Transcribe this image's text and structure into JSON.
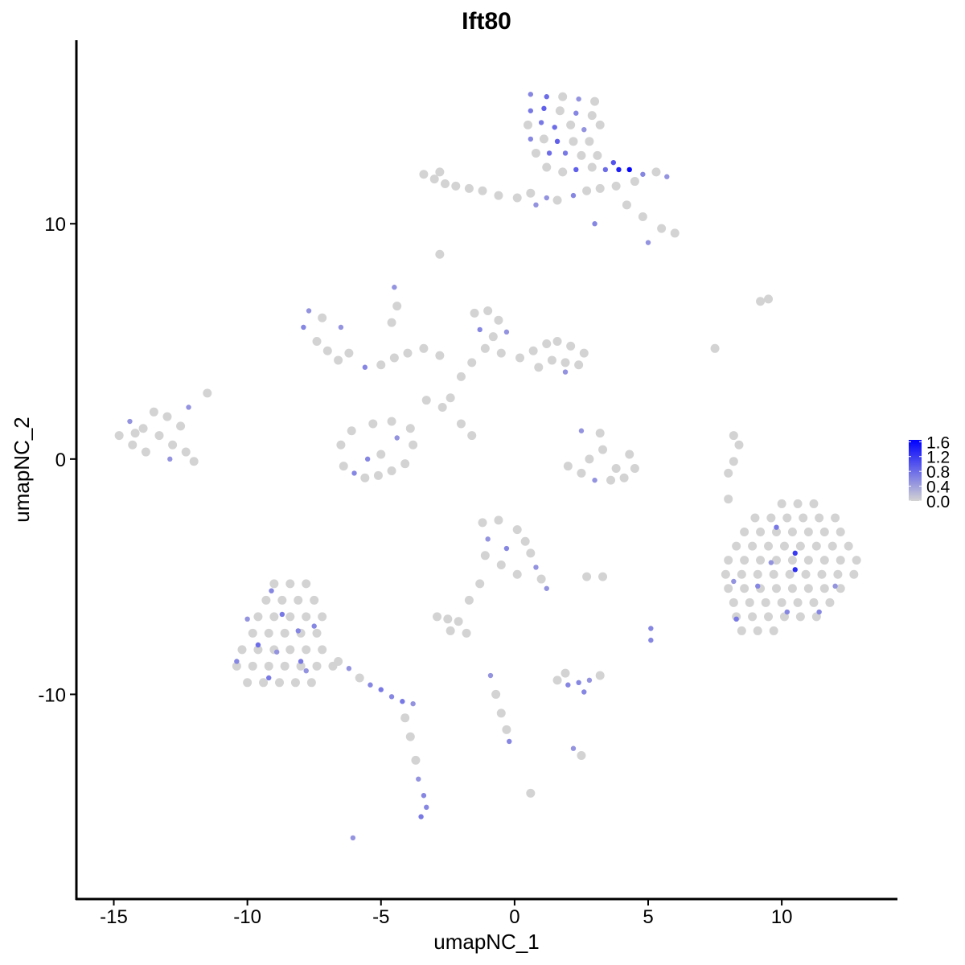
{
  "chart_data": {
    "type": "scatter",
    "title": "Ift80",
    "xlabel": "umapNC_1",
    "ylabel": "umapNC_2",
    "xlim": [
      -16.4,
      14.3
    ],
    "ylim": [
      -18.7,
      17.8
    ],
    "xticks": [
      -15,
      -10,
      -5,
      0,
      5,
      10
    ],
    "xtick_labels": [
      "-15",
      "-10",
      "-5",
      "0",
      "5",
      "10"
    ],
    "yticks": [
      -10,
      0,
      10
    ],
    "ytick_labels": [
      "-10",
      "0",
      "10"
    ],
    "grid": false,
    "legend": {
      "position": "right",
      "type": "colorbar",
      "ticks": [
        0.0,
        0.4,
        0.8,
        1.2,
        1.6
      ],
      "tick_labels": [
        "0.0",
        "0.4",
        "0.8",
        "1.2",
        "1.6"
      ],
      "range": [
        0,
        1.65
      ],
      "low_color": "#d3d3d3",
      "high_color": "#0000ff"
    },
    "point_fields": [
      "umapNC_1",
      "umapNC_2",
      "expression"
    ],
    "points": [
      [
        0.6,
        15.5,
        0.6
      ],
      [
        1.2,
        15.4,
        0.8
      ],
      [
        1.8,
        15.4,
        0
      ],
      [
        2.4,
        15.3,
        0.5
      ],
      [
        3.0,
        15.2,
        0
      ],
      [
        0.6,
        14.8,
        0.7
      ],
      [
        1.1,
        14.9,
        0.9
      ],
      [
        1.7,
        14.8,
        0
      ],
      [
        2.3,
        14.7,
        0.6
      ],
      [
        2.9,
        14.6,
        0
      ],
      [
        3.2,
        14.2,
        0
      ],
      [
        0.5,
        14.2,
        0
      ],
      [
        1.0,
        14.3,
        0.7
      ],
      [
        1.5,
        14.1,
        0.8
      ],
      [
        2.1,
        14.2,
        0
      ],
      [
        2.6,
        14.0,
        0.5
      ],
      [
        0.6,
        13.6,
        0.6
      ],
      [
        1.1,
        13.6,
        0
      ],
      [
        1.6,
        13.5,
        0.9
      ],
      [
        2.2,
        13.5,
        0
      ],
      [
        2.8,
        13.5,
        0
      ],
      [
        0.8,
        13.0,
        0
      ],
      [
        1.3,
        13.0,
        0.8
      ],
      [
        1.9,
        13.0,
        0.7
      ],
      [
        2.5,
        12.9,
        0
      ],
      [
        3.1,
        12.9,
        0
      ],
      [
        1.2,
        12.4,
        0
      ],
      [
        1.8,
        12.2,
        0
      ],
      [
        2.3,
        12.3,
        0.9
      ],
      [
        2.9,
        12.4,
        0
      ],
      [
        3.4,
        12.3,
        0.8
      ],
      [
        3.9,
        12.3,
        1.4
      ],
      [
        4.3,
        12.3,
        1.6
      ],
      [
        3.7,
        12.6,
        1.0
      ],
      [
        4.8,
        12.1,
        0.6
      ],
      [
        5.3,
        12.2,
        0
      ],
      [
        5.7,
        12.0,
        0.5
      ],
      [
        4.5,
        11.8,
        0
      ],
      [
        3.8,
        11.6,
        0
      ],
      [
        3.2,
        11.5,
        0
      ],
      [
        2.7,
        11.4,
        0
      ],
      [
        2.2,
        11.2,
        0.6
      ],
      [
        1.6,
        11.0,
        0
      ],
      [
        1.2,
        11.1,
        0.5
      ],
      [
        4.2,
        10.8,
        0
      ],
      [
        4.8,
        10.3,
        0
      ],
      [
        5.5,
        9.8,
        0
      ],
      [
        6.0,
        9.6,
        0
      ],
      [
        5.0,
        9.2,
        0.5
      ],
      [
        3.0,
        10.0,
        0.6
      ],
      [
        -3.4,
        12.1,
        0
      ],
      [
        -3.0,
        11.9,
        0
      ],
      [
        -2.6,
        11.7,
        0
      ],
      [
        -2.8,
        12.2,
        0
      ],
      [
        -2.2,
        11.6,
        0
      ],
      [
        -1.7,
        11.5,
        0
      ],
      [
        -1.2,
        11.4,
        0
      ],
      [
        -0.6,
        11.2,
        0
      ],
      [
        0.1,
        11.1,
        0
      ],
      [
        0.6,
        11.3,
        0
      ],
      [
        0.8,
        10.8,
        0.5
      ],
      [
        -2.8,
        8.7,
        0
      ],
      [
        -14.8,
        1.0,
        0
      ],
      [
        -14.4,
        1.6,
        0.5
      ],
      [
        -14.3,
        0.6,
        0
      ],
      [
        -13.9,
        1.3,
        0
      ],
      [
        -13.8,
        0.3,
        0
      ],
      [
        -13.5,
        2.0,
        0
      ],
      [
        -13.3,
        1.0,
        0
      ],
      [
        -13.0,
        1.8,
        0
      ],
      [
        -12.8,
        0.6,
        0
      ],
      [
        -12.9,
        0.0,
        0.5
      ],
      [
        -12.5,
        1.4,
        0
      ],
      [
        -12.3,
        0.3,
        0
      ],
      [
        -12.0,
        -0.1,
        0
      ],
      [
        -12.2,
        2.2,
        0.5
      ],
      [
        -11.5,
        2.8,
        0
      ],
      [
        -14.2,
        1.1,
        0
      ],
      [
        -6.5,
        0.6,
        0
      ],
      [
        -6.4,
        -0.3,
        0
      ],
      [
        -6.0,
        -0.6,
        0.6
      ],
      [
        -5.6,
        -0.8,
        0
      ],
      [
        -5.1,
        -0.7,
        0
      ],
      [
        -4.6,
        -0.5,
        0
      ],
      [
        -4.1,
        -0.2,
        0
      ],
      [
        -3.8,
        0.6,
        0
      ],
      [
        -3.9,
        1.3,
        0
      ],
      [
        -4.4,
        0.9,
        0.5
      ],
      [
        -5.0,
        0.2,
        0
      ],
      [
        -5.5,
        0.0,
        0.6
      ],
      [
        -6.1,
        1.2,
        0
      ],
      [
        -5.3,
        1.5,
        0
      ],
      [
        -4.6,
        1.6,
        0
      ],
      [
        -7.7,
        6.3,
        0.5
      ],
      [
        -7.9,
        5.6,
        0.6
      ],
      [
        -7.4,
        5.0,
        0
      ],
      [
        -7.0,
        4.6,
        0
      ],
      [
        -6.6,
        4.2,
        0
      ],
      [
        -6.2,
        4.5,
        0
      ],
      [
        -6.5,
        5.6,
        0.5
      ],
      [
        -7.2,
        6.0,
        0
      ],
      [
        -5.6,
        3.9,
        0.6
      ],
      [
        -5.0,
        4.0,
        0
      ],
      [
        -4.5,
        4.3,
        0
      ],
      [
        -4.0,
        4.5,
        0
      ],
      [
        -3.4,
        4.7,
        0
      ],
      [
        -2.8,
        4.4,
        0
      ],
      [
        -4.5,
        7.3,
        0.5
      ],
      [
        -4.4,
        6.5,
        0
      ],
      [
        -4.6,
        5.8,
        0
      ],
      [
        -1.5,
        6.2,
        0
      ],
      [
        -1.0,
        6.3,
        0
      ],
      [
        -0.6,
        5.9,
        0
      ],
      [
        -1.3,
        5.5,
        0.6
      ],
      [
        -0.8,
        5.2,
        0
      ],
      [
        -0.3,
        5.4,
        0.5
      ],
      [
        -1.1,
        4.7,
        0
      ],
      [
        -0.5,
        4.5,
        0
      ],
      [
        0.2,
        4.3,
        0
      ],
      [
        0.7,
        4.6,
        0
      ],
      [
        1.2,
        4.9,
        0
      ],
      [
        1.6,
        5.0,
        0
      ],
      [
        2.1,
        4.8,
        0
      ],
      [
        2.6,
        4.5,
        0
      ],
      [
        2.4,
        4.0,
        0
      ],
      [
        1.9,
        4.1,
        0
      ],
      [
        1.4,
        4.2,
        0
      ],
      [
        0.9,
        3.9,
        0
      ],
      [
        -1.6,
        4.1,
        0
      ],
      [
        -2.0,
        3.5,
        0
      ],
      [
        -2.4,
        2.6,
        0
      ],
      [
        -2.7,
        2.2,
        0
      ],
      [
        -3.3,
        2.5,
        0
      ],
      [
        -2.0,
        1.5,
        0
      ],
      [
        -1.6,
        1.0,
        0
      ],
      [
        1.9,
        3.7,
        0.5
      ],
      [
        2.5,
        1.2,
        0.5
      ],
      [
        3.2,
        1.1,
        0
      ],
      [
        3.3,
        0.4,
        0
      ],
      [
        2.8,
        0.0,
        0
      ],
      [
        2.0,
        -0.3,
        0
      ],
      [
        2.5,
        -0.6,
        0
      ],
      [
        3.0,
        -0.9,
        0.5
      ],
      [
        3.6,
        -0.9,
        0
      ],
      [
        4.1,
        -0.8,
        0
      ],
      [
        4.5,
        -0.4,
        0
      ],
      [
        4.3,
        0.2,
        0
      ],
      [
        3.8,
        -0.4,
        0
      ],
      [
        -1.2,
        -2.7,
        0
      ],
      [
        -0.6,
        -2.6,
        0
      ],
      [
        0.1,
        -3.0,
        0
      ],
      [
        0.4,
        -3.5,
        0
      ],
      [
        -1.0,
        -3.4,
        0.5
      ],
      [
        -0.3,
        -3.8,
        0.6
      ],
      [
        0.6,
        -4.0,
        0
      ],
      [
        -1.1,
        -4.1,
        0
      ],
      [
        -0.5,
        -4.5,
        0
      ],
      [
        0.8,
        -4.6,
        0.5
      ],
      [
        1.0,
        -5.1,
        0
      ],
      [
        1.2,
        -5.5,
        0.5
      ],
      [
        0.1,
        -4.9,
        0
      ],
      [
        -1.3,
        -5.3,
        0
      ],
      [
        -1.7,
        -6.0,
        0
      ],
      [
        10.0,
        -1.9,
        0
      ],
      [
        10.6,
        -1.9,
        0
      ],
      [
        11.2,
        -1.9,
        0
      ],
      [
        9.0,
        -2.5,
        0
      ],
      [
        9.6,
        -2.5,
        0
      ],
      [
        10.2,
        -2.5,
        0
      ],
      [
        10.8,
        -2.5,
        0
      ],
      [
        11.4,
        -2.5,
        0
      ],
      [
        12.0,
        -2.5,
        0
      ],
      [
        8.6,
        -3.1,
        0
      ],
      [
        9.2,
        -3.1,
        0
      ],
      [
        9.8,
        -3.1,
        0
      ],
      [
        10.4,
        -3.1,
        0
      ],
      [
        11.0,
        -3.1,
        0
      ],
      [
        11.6,
        -3.1,
        0
      ],
      [
        12.2,
        -3.1,
        0
      ],
      [
        8.3,
        -3.7,
        0
      ],
      [
        8.9,
        -3.7,
        0
      ],
      [
        9.5,
        -3.7,
        0
      ],
      [
        10.1,
        -3.7,
        0
      ],
      [
        10.7,
        -3.7,
        0
      ],
      [
        11.3,
        -3.7,
        0
      ],
      [
        11.9,
        -3.7,
        0
      ],
      [
        12.5,
        -3.7,
        0
      ],
      [
        8.0,
        -4.3,
        0
      ],
      [
        8.6,
        -4.3,
        0
      ],
      [
        9.2,
        -4.3,
        0
      ],
      [
        9.8,
        -4.3,
        0
      ],
      [
        10.4,
        -4.3,
        0
      ],
      [
        11.0,
        -4.3,
        0
      ],
      [
        11.6,
        -4.3,
        0
      ],
      [
        12.2,
        -4.3,
        0
      ],
      [
        12.8,
        -4.3,
        0
      ],
      [
        7.9,
        -4.9,
        0
      ],
      [
        8.5,
        -4.9,
        0
      ],
      [
        9.1,
        -4.9,
        0
      ],
      [
        9.7,
        -4.9,
        0
      ],
      [
        10.3,
        -4.9,
        0
      ],
      [
        10.9,
        -4.9,
        0
      ],
      [
        11.5,
        -4.9,
        0
      ],
      [
        12.1,
        -4.9,
        0
      ],
      [
        12.7,
        -4.9,
        0
      ],
      [
        8.0,
        -5.5,
        0
      ],
      [
        8.6,
        -5.5,
        0
      ],
      [
        9.2,
        -5.5,
        0
      ],
      [
        9.8,
        -5.5,
        0
      ],
      [
        10.4,
        -5.5,
        0
      ],
      [
        11.0,
        -5.5,
        0
      ],
      [
        11.6,
        -5.5,
        0
      ],
      [
        12.2,
        -5.5,
        0
      ],
      [
        8.2,
        -6.1,
        0
      ],
      [
        8.8,
        -6.1,
        0
      ],
      [
        9.4,
        -6.1,
        0
      ],
      [
        10.0,
        -6.1,
        0
      ],
      [
        10.6,
        -6.1,
        0
      ],
      [
        11.2,
        -6.1,
        0
      ],
      [
        11.8,
        -6.1,
        0
      ],
      [
        8.3,
        -6.7,
        0
      ],
      [
        8.9,
        -6.7,
        0
      ],
      [
        9.5,
        -6.7,
        0
      ],
      [
        10.1,
        -6.7,
        0
      ],
      [
        10.7,
        -6.7,
        0
      ],
      [
        11.3,
        -6.7,
        0
      ],
      [
        8.5,
        -7.3,
        0
      ],
      [
        9.1,
        -7.3,
        0
      ],
      [
        9.7,
        -7.3,
        0
      ],
      [
        10.5,
        -4.0,
        1.2
      ],
      [
        10.5,
        -4.7,
        1.3
      ],
      [
        9.8,
        -2.9,
        0.7
      ],
      [
        8.3,
        -6.8,
        0.7
      ],
      [
        9.1,
        -5.4,
        0.6
      ],
      [
        11.4,
        -6.5,
        0.6
      ],
      [
        12.0,
        -5.4,
        0.5
      ],
      [
        10.2,
        -6.5,
        0.6
      ],
      [
        9.6,
        -4.4,
        0.5
      ],
      [
        8.2,
        -5.2,
        0.5
      ],
      [
        -9.0,
        -5.3,
        0
      ],
      [
        -8.4,
        -5.3,
        0
      ],
      [
        -7.8,
        -5.3,
        0
      ],
      [
        -9.3,
        -6.0,
        0
      ],
      [
        -8.7,
        -6.0,
        0
      ],
      [
        -8.1,
        -6.0,
        0
      ],
      [
        -7.5,
        -6.0,
        0
      ],
      [
        -9.6,
        -6.7,
        0
      ],
      [
        -9.0,
        -6.7,
        0
      ],
      [
        -8.4,
        -6.7,
        0
      ],
      [
        -7.8,
        -6.7,
        0
      ],
      [
        -7.2,
        -6.7,
        0
      ],
      [
        -9.8,
        -7.4,
        0
      ],
      [
        -9.2,
        -7.4,
        0
      ],
      [
        -8.6,
        -7.4,
        0
      ],
      [
        -8.0,
        -7.4,
        0
      ],
      [
        -7.4,
        -7.4,
        0
      ],
      [
        -10.2,
        -8.1,
        0
      ],
      [
        -9.6,
        -8.1,
        0
      ],
      [
        -9.0,
        -8.1,
        0
      ],
      [
        -8.4,
        -8.1,
        0
      ],
      [
        -7.8,
        -8.1,
        0
      ],
      [
        -7.2,
        -8.1,
        0
      ],
      [
        -10.4,
        -8.8,
        0
      ],
      [
        -9.8,
        -8.8,
        0
      ],
      [
        -9.2,
        -8.8,
        0
      ],
      [
        -8.6,
        -8.8,
        0
      ],
      [
        -8.0,
        -8.8,
        0
      ],
      [
        -7.4,
        -8.8,
        0
      ],
      [
        -6.8,
        -8.8,
        0
      ],
      [
        -10.0,
        -9.5,
        0
      ],
      [
        -9.4,
        -9.5,
        0
      ],
      [
        -8.8,
        -9.5,
        0
      ],
      [
        -8.2,
        -9.5,
        0
      ],
      [
        -7.6,
        -9.5,
        0
      ],
      [
        -9.6,
        -7.9,
        0.8
      ],
      [
        -8.7,
        -6.6,
        0.7
      ],
      [
        -8.1,
        -7.3,
        0.6
      ],
      [
        -7.5,
        -7.1,
        0.6
      ],
      [
        -10.4,
        -8.6,
        0.6
      ],
      [
        -9.2,
        -9.3,
        0.7
      ],
      [
        -8.0,
        -8.6,
        0.7
      ],
      [
        -7.8,
        -9.0,
        0.5
      ],
      [
        -8.9,
        -8.2,
        0.5
      ],
      [
        -10.0,
        -6.8,
        0.5
      ],
      [
        -9.1,
        -5.6,
        0.6
      ],
      [
        -6.6,
        -8.6,
        0
      ],
      [
        -6.2,
        -8.9,
        0.5
      ],
      [
        -5.8,
        -9.3,
        0
      ],
      [
        -5.4,
        -9.6,
        0.6
      ],
      [
        -5.0,
        -9.8,
        0.7
      ],
      [
        -4.6,
        -10.1,
        0.6
      ],
      [
        -4.2,
        -10.3,
        0.7
      ],
      [
        -3.8,
        -10.4,
        0.5
      ],
      [
        -4.1,
        -11.0,
        0
      ],
      [
        -3.9,
        -11.8,
        0
      ],
      [
        -3.7,
        -12.8,
        0
      ],
      [
        -3.6,
        -13.6,
        0.5
      ],
      [
        -3.4,
        -14.3,
        0.6
      ],
      [
        -3.3,
        -14.8,
        0.6
      ],
      [
        -3.5,
        -15.2,
        0.7
      ],
      [
        -2.9,
        -6.7,
        0
      ],
      [
        -2.5,
        -6.8,
        0
      ],
      [
        -2.1,
        -6.9,
        0
      ],
      [
        -2.4,
        -7.3,
        0
      ],
      [
        -1.8,
        -7.4,
        0
      ],
      [
        1.6,
        -9.4,
        0
      ],
      [
        2.0,
        -9.6,
        0.6
      ],
      [
        2.4,
        -9.5,
        0.6
      ],
      [
        2.8,
        -9.4,
        0.5
      ],
      [
        3.2,
        -9.2,
        0
      ],
      [
        1.9,
        -9.1,
        0
      ],
      [
        2.6,
        -9.9,
        0.6
      ],
      [
        -0.9,
        -9.2,
        0.5
      ],
      [
        -0.7,
        -10.0,
        0
      ],
      [
        -0.5,
        -10.8,
        0
      ],
      [
        -0.3,
        -11.5,
        0
      ],
      [
        -0.2,
        -12.0,
        0.6
      ],
      [
        2.2,
        -12.3,
        0.5
      ],
      [
        2.5,
        -12.6,
        0
      ],
      [
        0.6,
        -14.2,
        0
      ],
      [
        -6.05,
        -16.1,
        0.5
      ],
      [
        3.3,
        -5.0,
        0
      ],
      [
        2.7,
        -5.0,
        0
      ],
      [
        5.1,
        -7.2,
        0.6
      ],
      [
        5.1,
        -7.7,
        0.6
      ],
      [
        9.2,
        6.7,
        0
      ],
      [
        9.5,
        6.8,
        0
      ],
      [
        7.5,
        4.7,
        0
      ],
      [
        8.2,
        -0.1,
        0
      ],
      [
        8.4,
        0.6,
        0
      ],
      [
        8.2,
        1.0,
        0
      ],
      [
        8.0,
        -0.6,
        0
      ],
      [
        8.0,
        -1.7,
        0
      ]
    ]
  }
}
